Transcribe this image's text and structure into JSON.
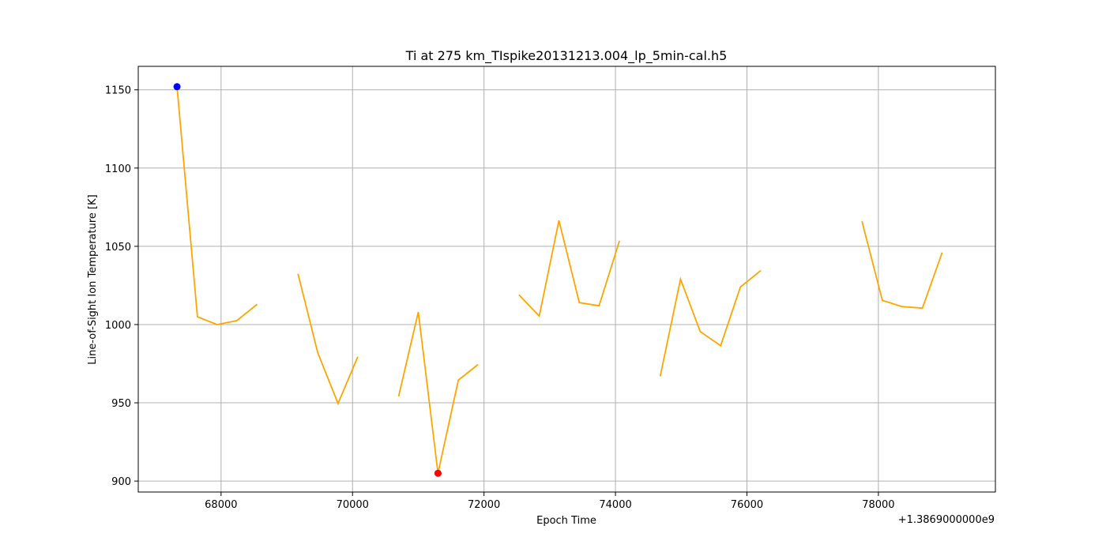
{
  "chart_data": {
    "type": "line",
    "title": "Ti at 275 km_TIspike20131213.004_lp_5min-cal.h5",
    "xlabel": "Epoch Time",
    "ylabel": "Line-of-Sight Ion Temperature [K]",
    "x_offset_label": "+1.3869000000e9",
    "xlim": [
      66740,
      79780
    ],
    "ylim": [
      893,
      1165
    ],
    "x_ticks": [
      68000,
      70000,
      72000,
      74000,
      76000,
      78000
    ],
    "x_tick_labels": [
      "68000",
      "70000",
      "72000",
      "74000",
      "76000",
      "78000"
    ],
    "y_ticks": [
      900,
      950,
      1000,
      1050,
      1100,
      1150
    ],
    "y_tick_labels": [
      "900",
      "950",
      "1000",
      "1050",
      "1100",
      "1150"
    ],
    "grid": true,
    "colors": {
      "line": "#ffa500",
      "max_marker": "#0000ff",
      "min_marker": "#ff0000",
      "grid": "#b0b0b0"
    },
    "segments": [
      {
        "x": [
          67330,
          67640,
          67940,
          68240,
          68550
        ],
        "y": [
          1152,
          1005,
          1000,
          1002.5,
          1013
        ]
      },
      {
        "x": [
          69170,
          69470,
          69780,
          70080
        ],
        "y": [
          1032.5,
          982,
          949.5,
          979.5
        ]
      },
      {
        "x": [
          70700,
          71000,
          71300,
          71610,
          71910
        ],
        "y": [
          954,
          1008,
          905,
          964.5,
          974.5
        ]
      },
      {
        "x": [
          72530,
          72840,
          73140,
          73450,
          73750,
          74060
        ],
        "y": [
          1019,
          1005.5,
          1066.5,
          1014,
          1012,
          1053.5
        ]
      },
      {
        "x": [
          74680,
          74990,
          75290,
          75600,
          75900,
          76210
        ],
        "y": [
          967,
          1029,
          995.5,
          986.5,
          1024,
          1034.5
        ]
      },
      {
        "x": [
          77750,
          78060,
          78360,
          78670,
          78970
        ],
        "y": [
          1066,
          1015.5,
          1011.5,
          1010.5,
          1046
        ]
      }
    ],
    "max_point": {
      "x": 67330,
      "y": 1152
    },
    "min_point": {
      "x": 71300,
      "y": 905
    }
  }
}
